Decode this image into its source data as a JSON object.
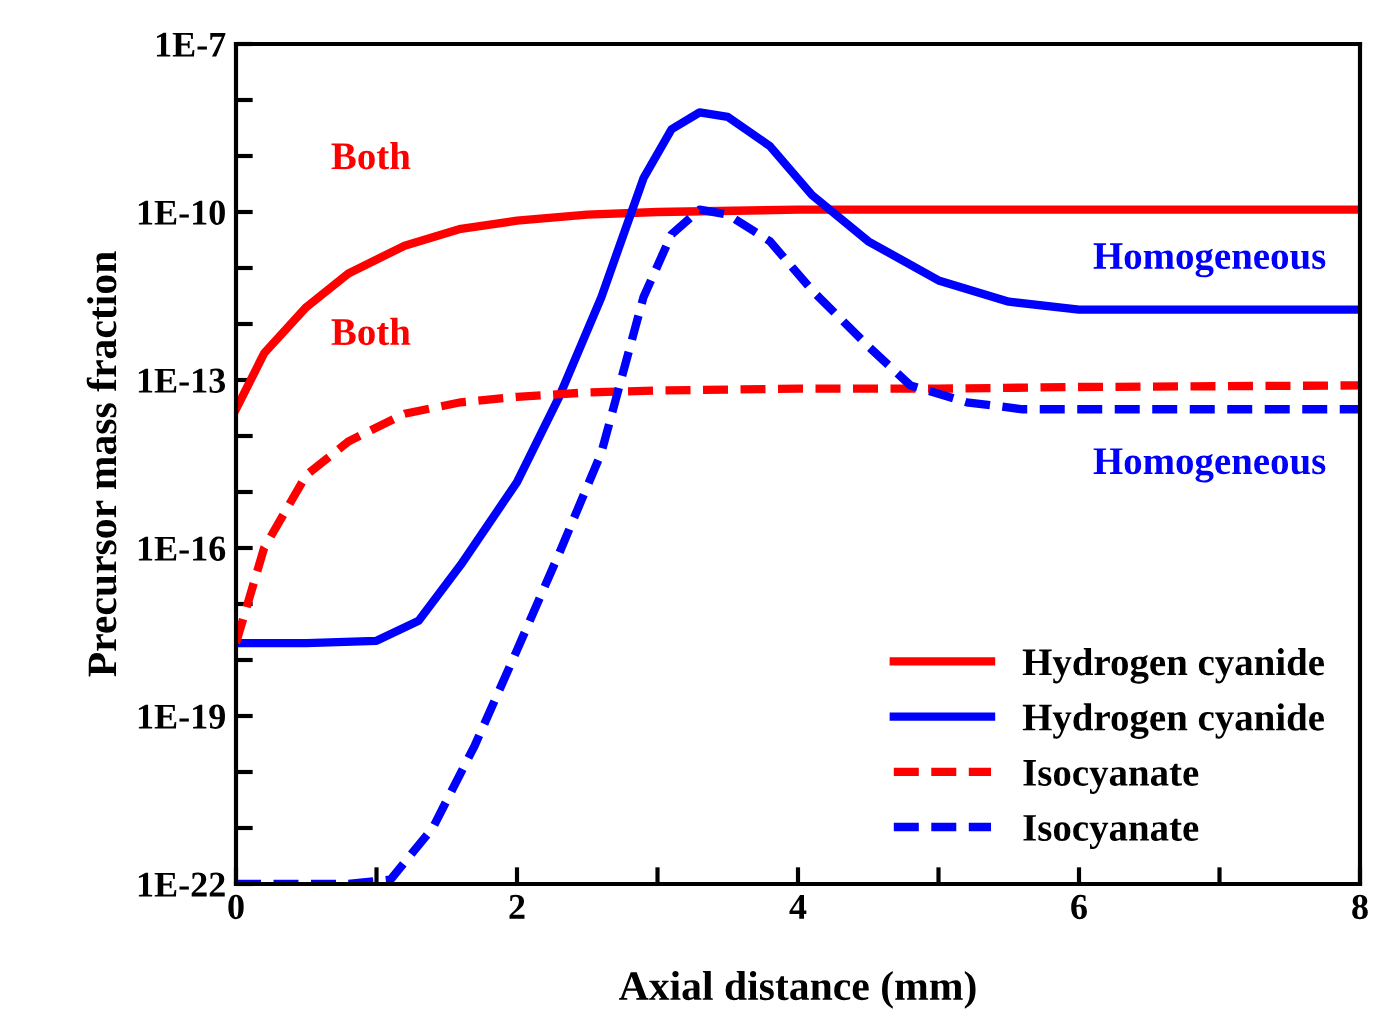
{
  "chart_data": {
    "type": "line",
    "xlabel": "Axial distance (mm)",
    "ylabel": "Precursor mass fraction",
    "log": "y",
    "grid": false,
    "legend": "bottom right",
    "marker": "none",
    "xlim": [
      0,
      8
    ],
    "xticks": [
      0,
      {
        "value": 1,
        "label": null
      },
      2,
      {
        "value": 3,
        "label": null
      },
      4,
      {
        "value": 5,
        "label": null
      },
      6,
      {
        "value": 7,
        "label": null
      },
      8
    ],
    "ylim": [
      1e-22,
      1e-07
    ],
    "yticks": [
      {
        "value": 1e-22,
        "label": "1E-22"
      },
      {
        "value": 1e-21,
        "label": null
      },
      {
        "value": 1e-20,
        "label": null
      },
      {
        "value": 1e-19,
        "label": "1E-19"
      },
      {
        "value": 1e-18,
        "label": null
      },
      {
        "value": 1e-17,
        "label": null
      },
      {
        "value": 1e-16,
        "label": "1E-16"
      },
      {
        "value": 1e-15,
        "label": null
      },
      {
        "value": 1e-14,
        "label": null
      },
      {
        "value": 1e-13,
        "label": "1E-13"
      },
      {
        "value": 1e-12,
        "label": null
      },
      {
        "value": 1e-11,
        "label": null
      },
      {
        "value": 1e-10,
        "label": "1E-10"
      },
      {
        "value": 1e-09,
        "label": null
      },
      {
        "value": 1e-08,
        "label": null
      },
      {
        "value": 1e-07,
        "label": "1E-7"
      }
    ],
    "series": [
      {
        "name": "Hydrogen cyanide",
        "color": "#ff0000",
        "line_style": "solid",
        "x": [
          0,
          0.2,
          0.5,
          0.8,
          1.2,
          1.6,
          2,
          2.5,
          3,
          4,
          5,
          6,
          8
        ],
        "values": [
          3e-14,
          3e-13,
          2e-12,
          8e-12,
          2.5e-11,
          5e-11,
          7e-11,
          9e-11,
          1e-10,
          1.1e-10,
          1.1e-10,
          1.1e-10,
          1.1e-10
        ]
      },
      {
        "name": "Hydrogen cyanide",
        "color": "#0000ff",
        "line_style": "solid",
        "x": [
          0,
          0.5,
          1,
          1.3,
          1.6,
          2,
          2.3,
          2.6,
          2.9,
          3.1,
          3.3,
          3.5,
          3.8,
          4.1,
          4.5,
          5,
          5.5,
          6,
          7,
          8
        ],
        "values": [
          2e-18,
          2e-18,
          2.2e-18,
          5e-18,
          5e-17,
          1.5e-15,
          5e-14,
          3e-12,
          4e-10,
          3e-09,
          6e-09,
          5e-09,
          1.5e-09,
          2e-10,
          3e-11,
          6e-12,
          2.5e-12,
          1.8e-12,
          1.8e-12,
          1.8e-12
        ]
      },
      {
        "name": "Isocyanate",
        "color": "#ff0000",
        "line_style": "dashed",
        "x": [
          0,
          0.2,
          0.5,
          0.8,
          1.2,
          1.6,
          2,
          2.5,
          3,
          4,
          5,
          6,
          8
        ],
        "values": [
          2e-18,
          1e-16,
          2e-15,
          8e-15,
          2.5e-14,
          4e-14,
          5e-14,
          6e-14,
          6.5e-14,
          7e-14,
          7e-14,
          7.5e-14,
          8e-14
        ]
      },
      {
        "name": "Isocyanate",
        "color": "#0000ff",
        "line_style": "dashed",
        "x": [
          0,
          0.8,
          1.1,
          1.4,
          1.7,
          2,
          2.3,
          2.6,
          2.9,
          3.1,
          3.3,
          3.5,
          3.8,
          4.1,
          4.5,
          4.8,
          5.2,
          5.6,
          6,
          7,
          8
        ],
        "values": [
          1e-22,
          1e-22,
          1.2e-22,
          1e-21,
          3e-20,
          1.5e-18,
          8e-17,
          5e-15,
          3e-12,
          4e-11,
          1.1e-10,
          9e-11,
          3e-11,
          4e-12,
          4e-13,
          8e-14,
          4e-14,
          3e-14,
          3e-14,
          3e-14,
          3e-14
        ]
      }
    ],
    "annotations": [
      "Both",
      "Homogeneous",
      "Both",
      "Homogeneous"
    ]
  }
}
